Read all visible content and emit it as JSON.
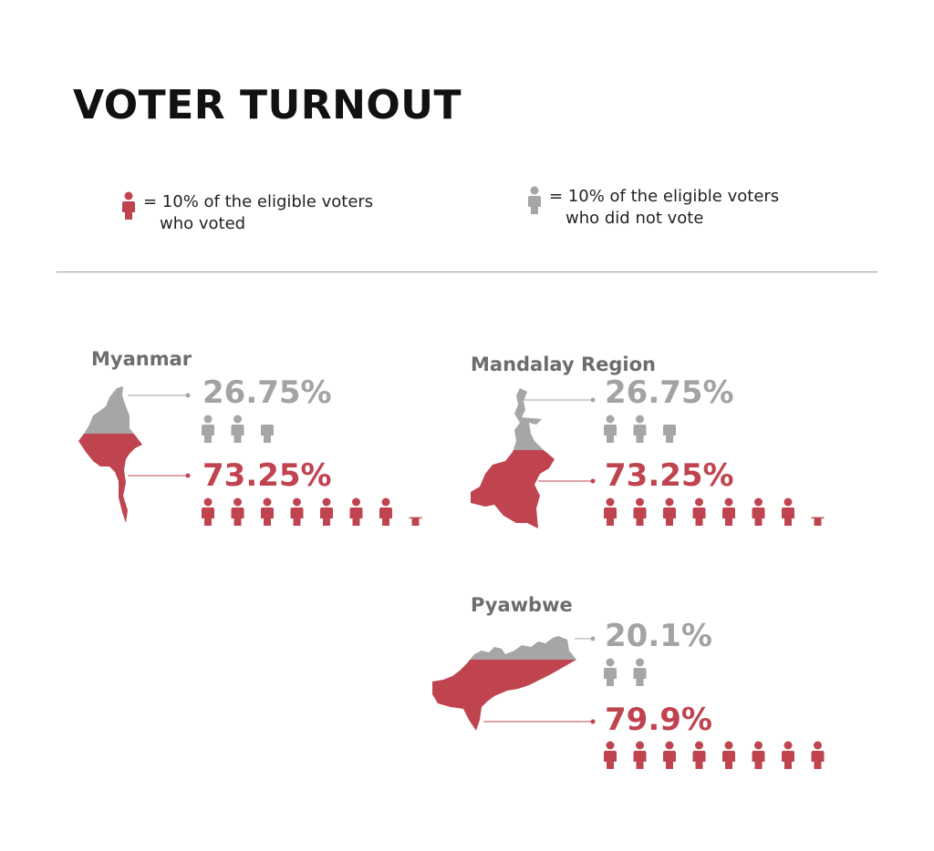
{
  "title": "VOTER TURNOUT",
  "legend": {
    "voted_line1": "= 10% of the eligible voters",
    "voted_line2": "who voted",
    "not_voted_line1": "= 10% of the eligible voters",
    "not_voted_line2": "who did not vote"
  },
  "colors": {
    "voted": "#c0444f",
    "not_voted": "#a6a6a6"
  },
  "chart_data": [
    {
      "type": "pictogram",
      "region": "Myanmar",
      "icon_unit_percent": 10,
      "series": [
        {
          "name": "did not vote",
          "label": "26.75%",
          "value": 26.75
        },
        {
          "name": "voted",
          "label": "73.25%",
          "value": 73.25
        }
      ]
    },
    {
      "type": "pictogram",
      "region": "Mandalay Region",
      "icon_unit_percent": 10,
      "series": [
        {
          "name": "did not vote",
          "label": "26.75%",
          "value": 26.75
        },
        {
          "name": "voted",
          "label": "73.25%",
          "value": 73.25
        }
      ]
    },
    {
      "type": "pictogram",
      "region": "Pyawbwe",
      "icon_unit_percent": 10,
      "series": [
        {
          "name": "did not vote",
          "label": "20.1%",
          "value": 20.1
        },
        {
          "name": "voted",
          "label": "79.9%",
          "value": 79.9
        }
      ]
    }
  ]
}
